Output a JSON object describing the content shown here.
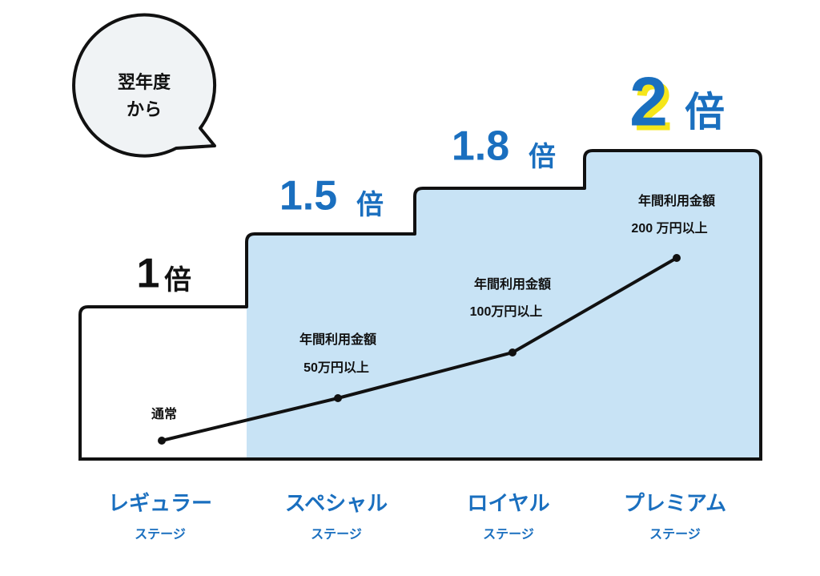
{
  "bubble": {
    "lines": [
      "翌年度",
      "から"
    ]
  },
  "stages": [
    {
      "multiplier": "1",
      "unit": "倍",
      "usage_title": "通常",
      "name": "レギュラー",
      "suffix": "ステージ"
    },
    {
      "multiplier": "1.5",
      "unit": "倍",
      "usage_title": "年間利用金額",
      "usage_amount": "50万円以上",
      "name": "スペシャル",
      "suffix": "ステージ"
    },
    {
      "multiplier": "1.8",
      "unit": "倍",
      "usage_title": "年間利用金額",
      "usage_amount": "100万円以上",
      "name": "ロイヤル",
      "suffix": "ステージ"
    },
    {
      "multiplier": "2",
      "unit": "倍",
      "usage_title": "年間利用金額",
      "usage_amount": "200 万円以上",
      "name": "プレミアム",
      "suffix": "ステージ"
    }
  ]
}
